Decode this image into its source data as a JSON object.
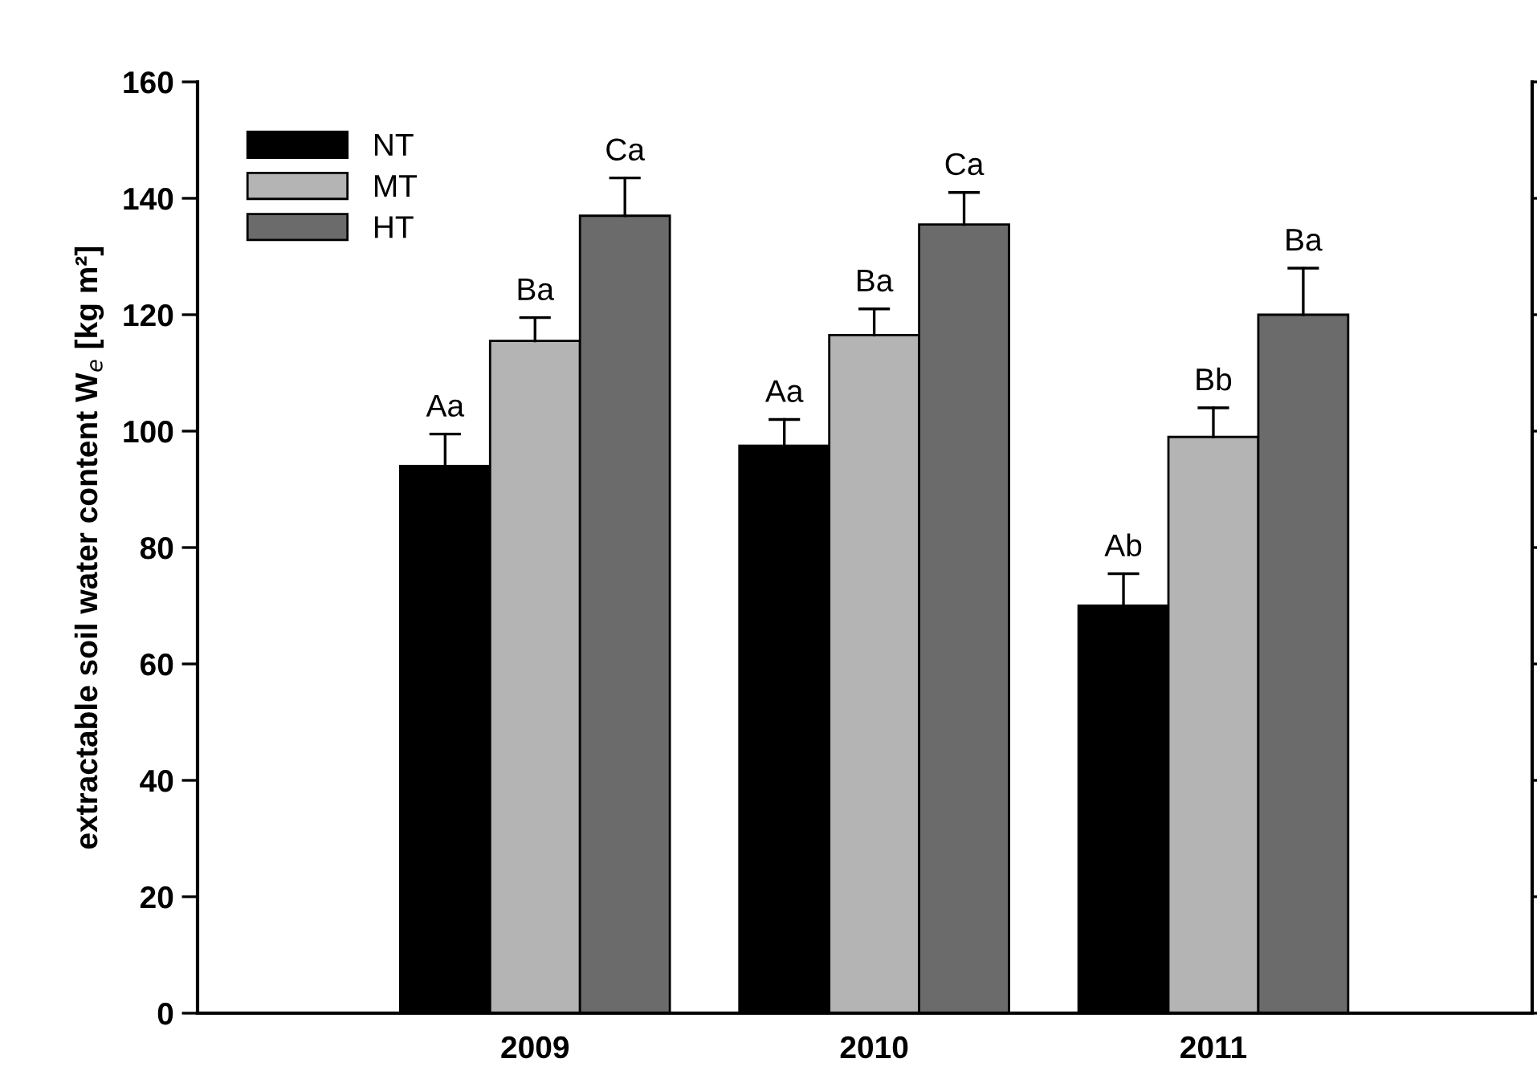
{
  "chart_data": {
    "type": "bar",
    "ylabel": "extractable soil water content W$_{e}$ [kg m²]",
    "categories": [
      "2009",
      "2010",
      "2011"
    ],
    "series": [
      {
        "name": "NT",
        "color": "#000000",
        "values": [
          94,
          97.5,
          70
        ],
        "errors": [
          [
            94,
            99.5
          ],
          [
            97.5,
            102
          ],
          [
            70,
            75.5
          ]
        ],
        "value_labels": [
          "Aa",
          "Aa",
          "Ab"
        ]
      },
      {
        "name": "MT",
        "color": "#b4b4b4",
        "values": [
          115.5,
          116.5,
          99
        ],
        "errors": [
          [
            115.5,
            119.5
          ],
          [
            116.5,
            121
          ],
          [
            99,
            104
          ]
        ],
        "value_labels": [
          "Ba",
          "Ba",
          "Bb"
        ]
      },
      {
        "name": "HT",
        "color": "#6b6b6b",
        "values": [
          137,
          135.5,
          120
        ],
        "errors": [
          [
            137,
            143.5
          ],
          [
            135.5,
            141
          ],
          [
            120,
            128
          ]
        ],
        "value_labels": [
          "Ca",
          "Ca",
          "Ba"
        ]
      }
    ],
    "ylim": [
      0,
      160
    ],
    "yticks": [
      0,
      20,
      40,
      60,
      80,
      100,
      120,
      140,
      160
    ],
    "legend": "top left",
    "grid": false
  }
}
